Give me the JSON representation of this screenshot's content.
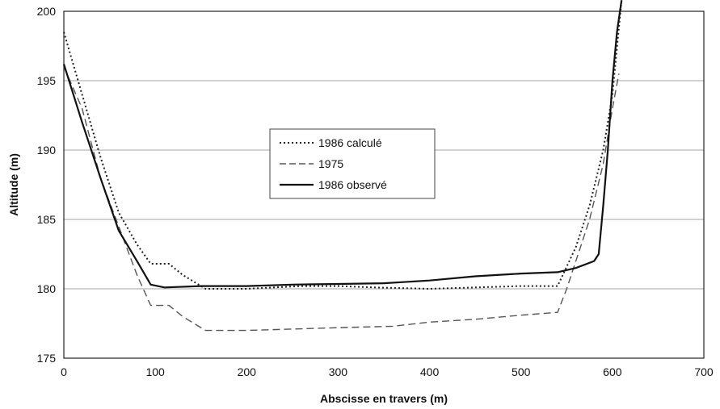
{
  "chart_data": {
    "type": "line",
    "title": "",
    "xlabel": "Abscisse en travers (m)",
    "ylabel": "Altitude (m)",
    "xlim": [
      0,
      700
    ],
    "ylim": [
      175,
      200
    ],
    "xticks": [
      "0",
      "100",
      "200",
      "300",
      "400",
      "500",
      "600",
      "700"
    ],
    "yticks": [
      "175",
      "180",
      "185",
      "190",
      "195",
      "200"
    ],
    "grid": "horizontal",
    "legend_position": "center",
    "series": [
      {
        "name": "1986 calculé",
        "style": "dotted",
        "color": "#222222",
        "points": [
          [
            0,
            198.5
          ],
          [
            20,
            194
          ],
          [
            40,
            189.5
          ],
          [
            60,
            185.5
          ],
          [
            80,
            183.2
          ],
          [
            95,
            181.8
          ],
          [
            115,
            181.8
          ],
          [
            130,
            181
          ],
          [
            155,
            180
          ],
          [
            200,
            180
          ],
          [
            260,
            180.2
          ],
          [
            300,
            180.2
          ],
          [
            340,
            180.1
          ],
          [
            400,
            180
          ],
          [
            450,
            180.1
          ],
          [
            500,
            180.2
          ],
          [
            540,
            180.2
          ],
          [
            560,
            183
          ],
          [
            575,
            186
          ],
          [
            590,
            190
          ],
          [
            600,
            194
          ],
          [
            610,
            200.8
          ]
        ]
      },
      {
        "name": "1975",
        "style": "dashed",
        "color": "#555555",
        "points": [
          [
            0,
            196
          ],
          [
            20,
            193
          ],
          [
            40,
            188
          ],
          [
            60,
            184.5
          ],
          [
            80,
            181
          ],
          [
            95,
            178.8
          ],
          [
            115,
            178.8
          ],
          [
            130,
            178
          ],
          [
            155,
            177
          ],
          [
            200,
            177
          ],
          [
            250,
            177.1
          ],
          [
            300,
            177.2
          ],
          [
            360,
            177.3
          ],
          [
            400,
            177.6
          ],
          [
            450,
            177.8
          ],
          [
            500,
            178.1
          ],
          [
            540,
            178.3
          ],
          [
            550,
            180
          ],
          [
            565,
            183
          ],
          [
            575,
            185
          ],
          [
            590,
            189
          ],
          [
            600,
            193
          ],
          [
            607,
            195.5
          ]
        ]
      },
      {
        "name": "1986 observé",
        "style": "solid",
        "color": "#111111",
        "points": [
          [
            0,
            196.2
          ],
          [
            20,
            192
          ],
          [
            40,
            188
          ],
          [
            60,
            184.2
          ],
          [
            80,
            182
          ],
          [
            95,
            180.3
          ],
          [
            110,
            180.1
          ],
          [
            150,
            180.2
          ],
          [
            200,
            180.2
          ],
          [
            250,
            180.3
          ],
          [
            300,
            180.35
          ],
          [
            350,
            180.4
          ],
          [
            400,
            180.6
          ],
          [
            450,
            180.9
          ],
          [
            500,
            181.1
          ],
          [
            540,
            181.2
          ],
          [
            560,
            181.5
          ],
          [
            580,
            182
          ],
          [
            585,
            182.5
          ],
          [
            590,
            186
          ],
          [
            595,
            190
          ],
          [
            600,
            195
          ],
          [
            605,
            198.5
          ],
          [
            610,
            200.8
          ]
        ]
      }
    ]
  }
}
